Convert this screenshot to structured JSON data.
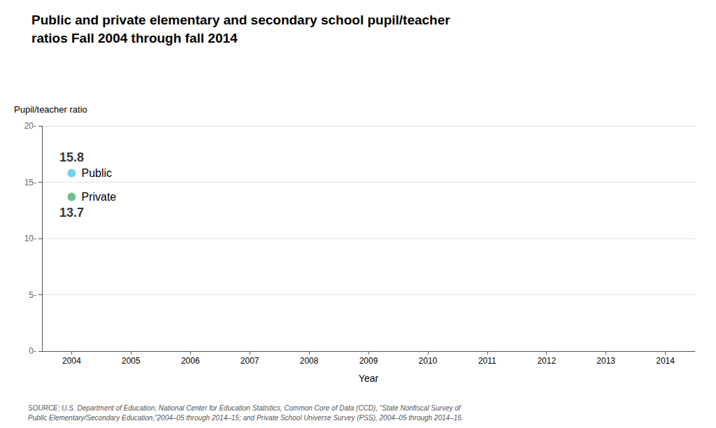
{
  "chart_data": {
    "type": "scatter",
    "title": "Public and private elementary and secondary school pupil/teacher\nratios Fall 2004 through fall 2014",
    "xlabel": "Year",
    "ylabel": "Pupil/teacher ratio",
    "x": [
      2004
    ],
    "series": [
      {
        "name": "Public",
        "color": "#4DC8E8",
        "values": [
          15.8
        ]
      },
      {
        "name": "Private",
        "color": "#4CAF78",
        "values": [
          13.7
        ]
      }
    ],
    "xlim": [
      2003.5,
      2014.5
    ],
    "xticks": [
      2004,
      2005,
      2006,
      2007,
      2008,
      2009,
      2010,
      2011,
      2012,
      2013,
      2014
    ],
    "ylim": [
      0,
      20
    ],
    "yticks": [
      {
        "value": 0,
        "label": "0-"
      },
      {
        "value": 5,
        "label": "5-"
      },
      {
        "value": 10,
        "label": "10-"
      },
      {
        "value": 15,
        "label": "15-"
      },
      {
        "value": 20,
        "label": "20-"
      }
    ],
    "grid": true,
    "data_labels": true,
    "annotations": [
      "SOURCE: U.S. Department of Education, National Center for Education Statistics, Common Core of Data (CCD), “State Nonfiscal Survey of\nPublic Elementary/Secondary Education,”2004–05 through 2014–15; and Private School Universe Survey (PSS), 2004–05 through 2014–15."
    ]
  }
}
